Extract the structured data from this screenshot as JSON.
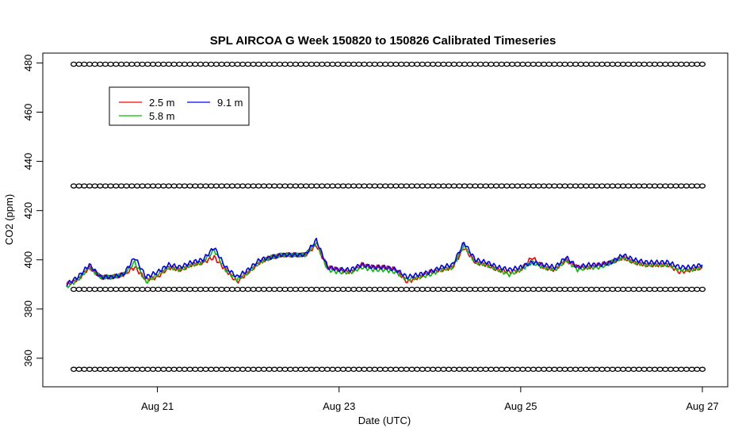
{
  "chart_data": {
    "type": "line",
    "title": "SPL AIRCOA G  Week 150820 to 150826  Calibrated Timeseries",
    "xlabel": "Date (UTC)",
    "ylabel": "CO2 (ppm)",
    "xlim": [
      "2015-08-20T00:00",
      "2015-08-27T00:00"
    ],
    "ylim": [
      350,
      484
    ],
    "x_ticks": [
      {
        "x": "2015-08-21T00:00",
        "label": "Aug 21"
      },
      {
        "x": "2015-08-23T00:00",
        "label": "Aug 23"
      },
      {
        "x": "2015-08-25T00:00",
        "label": "Aug 25"
      },
      {
        "x": "2015-08-27T00:00",
        "label": "Aug 27"
      }
    ],
    "y_ticks": [
      360,
      380,
      400,
      420,
      440,
      460,
      480
    ],
    "legend": {
      "position": "top-left",
      "entries": [
        "2.5 m",
        "5.8 m",
        "9.1 m"
      ]
    },
    "series": [
      {
        "name": "2.5 m",
        "color": "#ff0000",
        "points": [
          [
            "2015-08-20T00:00",
            390
          ],
          [
            "2015-08-20T03:00",
            392
          ],
          [
            "2015-08-20T06:00",
            397
          ],
          [
            "2015-08-20T09:00",
            393
          ],
          [
            "2015-08-20T12:00",
            393
          ],
          [
            "2015-08-20T15:00",
            394
          ],
          [
            "2015-08-20T18:00",
            397
          ],
          [
            "2015-08-20T21:00",
            392
          ],
          [
            "2015-08-21T00:00",
            393
          ],
          [
            "2015-08-21T03:00",
            397
          ],
          [
            "2015-08-21T06:00",
            396
          ],
          [
            "2015-08-21T09:00",
            398
          ],
          [
            "2015-08-21T12:00",
            399
          ],
          [
            "2015-08-21T15:00",
            401
          ],
          [
            "2015-08-21T18:00",
            396
          ],
          [
            "2015-08-21T21:00",
            391
          ],
          [
            "2015-08-22T00:00",
            395
          ],
          [
            "2015-08-22T03:00",
            399
          ],
          [
            "2015-08-22T06:00",
            401
          ],
          [
            "2015-08-22T09:00",
            402
          ],
          [
            "2015-08-22T12:00",
            402
          ],
          [
            "2015-08-22T15:00",
            402
          ],
          [
            "2015-08-22T18:00",
            406
          ],
          [
            "2015-08-22T21:00",
            397
          ],
          [
            "2015-08-23T00:00",
            396
          ],
          [
            "2015-08-23T03:00",
            395
          ],
          [
            "2015-08-23T06:00",
            398
          ],
          [
            "2015-08-23T09:00",
            397
          ],
          [
            "2015-08-23T12:00",
            397
          ],
          [
            "2015-08-23T15:00",
            396
          ],
          [
            "2015-08-23T18:00",
            391
          ],
          [
            "2015-08-23T21:00",
            393
          ],
          [
            "2015-08-24T00:00",
            395
          ],
          [
            "2015-08-24T03:00",
            396
          ],
          [
            "2015-08-24T06:00",
            397
          ],
          [
            "2015-08-24T09:00",
            405
          ],
          [
            "2015-08-24T12:00",
            399
          ],
          [
            "2015-08-24T15:00",
            398
          ],
          [
            "2015-08-24T18:00",
            396
          ],
          [
            "2015-08-24T21:00",
            395
          ],
          [
            "2015-08-25T00:00",
            396
          ],
          [
            "2015-08-25T03:00",
            401
          ],
          [
            "2015-08-25T06:00",
            397
          ],
          [
            "2015-08-25T09:00",
            396
          ],
          [
            "2015-08-25T12:00",
            400
          ],
          [
            "2015-08-25T15:00",
            397
          ],
          [
            "2015-08-25T18:00",
            397
          ],
          [
            "2015-08-25T21:00",
            398
          ],
          [
            "2015-08-26T00:00",
            399
          ],
          [
            "2015-08-26T03:00",
            401
          ],
          [
            "2015-08-26T06:00",
            399
          ],
          [
            "2015-08-26T09:00",
            398
          ],
          [
            "2015-08-26T12:00",
            398
          ],
          [
            "2015-08-26T15:00",
            398
          ],
          [
            "2015-08-26T18:00",
            395
          ],
          [
            "2015-08-26T21:00",
            396
          ],
          [
            "2015-08-27T00:00",
            397
          ]
        ]
      },
      {
        "name": "5.8 m",
        "color": "#00c000",
        "points": [
          [
            "2015-08-20T00:00",
            389
          ],
          [
            "2015-08-20T03:00",
            392
          ],
          [
            "2015-08-20T06:00",
            397
          ],
          [
            "2015-08-20T09:00",
            393
          ],
          [
            "2015-08-20T12:00",
            393
          ],
          [
            "2015-08-20T15:00",
            394
          ],
          [
            "2015-08-20T18:00",
            399
          ],
          [
            "2015-08-20T21:00",
            391
          ],
          [
            "2015-08-21T00:00",
            394
          ],
          [
            "2015-08-21T03:00",
            397
          ],
          [
            "2015-08-21T06:00",
            396
          ],
          [
            "2015-08-21T09:00",
            398
          ],
          [
            "2015-08-21T12:00",
            399
          ],
          [
            "2015-08-21T15:00",
            404
          ],
          [
            "2015-08-21T18:00",
            396
          ],
          [
            "2015-08-21T21:00",
            392
          ],
          [
            "2015-08-22T00:00",
            395
          ],
          [
            "2015-08-22T03:00",
            399
          ],
          [
            "2015-08-22T06:00",
            401
          ],
          [
            "2015-08-22T09:00",
            402
          ],
          [
            "2015-08-22T12:00",
            402
          ],
          [
            "2015-08-22T15:00",
            402
          ],
          [
            "2015-08-22T18:00",
            407
          ],
          [
            "2015-08-22T21:00",
            396
          ],
          [
            "2015-08-23T00:00",
            395
          ],
          [
            "2015-08-23T03:00",
            395
          ],
          [
            "2015-08-23T06:00",
            397
          ],
          [
            "2015-08-23T09:00",
            396
          ],
          [
            "2015-08-23T12:00",
            396
          ],
          [
            "2015-08-23T15:00",
            395
          ],
          [
            "2015-08-23T18:00",
            392
          ],
          [
            "2015-08-23T21:00",
            393
          ],
          [
            "2015-08-24T00:00",
            394
          ],
          [
            "2015-08-24T03:00",
            396
          ],
          [
            "2015-08-24T06:00",
            397
          ],
          [
            "2015-08-24T09:00",
            406
          ],
          [
            "2015-08-24T12:00",
            399
          ],
          [
            "2015-08-24T15:00",
            398
          ],
          [
            "2015-08-24T18:00",
            396
          ],
          [
            "2015-08-24T21:00",
            394
          ],
          [
            "2015-08-25T00:00",
            396
          ],
          [
            "2015-08-25T03:00",
            399
          ],
          [
            "2015-08-25T06:00",
            397
          ],
          [
            "2015-08-25T09:00",
            396
          ],
          [
            "2015-08-25T12:00",
            400
          ],
          [
            "2015-08-25T15:00",
            396
          ],
          [
            "2015-08-25T18:00",
            397
          ],
          [
            "2015-08-25T21:00",
            397
          ],
          [
            "2015-08-26T00:00",
            399
          ],
          [
            "2015-08-26T03:00",
            401
          ],
          [
            "2015-08-26T06:00",
            399
          ],
          [
            "2015-08-26T09:00",
            398
          ],
          [
            "2015-08-26T12:00",
            398
          ],
          [
            "2015-08-26T15:00",
            398
          ],
          [
            "2015-08-26T18:00",
            396
          ],
          [
            "2015-08-26T21:00",
            396
          ],
          [
            "2015-08-27T00:00",
            397
          ]
        ]
      },
      {
        "name": "9.1 m",
        "color": "#0000ff",
        "points": [
          [
            "2015-08-20T00:00",
            390
          ],
          [
            "2015-08-20T03:00",
            393
          ],
          [
            "2015-08-20T06:00",
            398
          ],
          [
            "2015-08-20T09:00",
            393
          ],
          [
            "2015-08-20T12:00",
            393
          ],
          [
            "2015-08-20T15:00",
            394
          ],
          [
            "2015-08-20T18:00",
            401
          ],
          [
            "2015-08-20T21:00",
            393
          ],
          [
            "2015-08-21T00:00",
            395
          ],
          [
            "2015-08-21T03:00",
            398
          ],
          [
            "2015-08-21T06:00",
            397
          ],
          [
            "2015-08-21T09:00",
            399
          ],
          [
            "2015-08-21T12:00",
            400
          ],
          [
            "2015-08-21T15:00",
            405
          ],
          [
            "2015-08-21T18:00",
            397
          ],
          [
            "2015-08-21T21:00",
            393
          ],
          [
            "2015-08-22T00:00",
            396
          ],
          [
            "2015-08-22T03:00",
            400
          ],
          [
            "2015-08-22T06:00",
            401
          ],
          [
            "2015-08-22T09:00",
            402
          ],
          [
            "2015-08-22T12:00",
            402
          ],
          [
            "2015-08-22T15:00",
            402
          ],
          [
            "2015-08-22T18:00",
            408
          ],
          [
            "2015-08-22T21:00",
            397
          ],
          [
            "2015-08-23T00:00",
            396
          ],
          [
            "2015-08-23T03:00",
            396
          ],
          [
            "2015-08-23T06:00",
            398
          ],
          [
            "2015-08-23T09:00",
            397
          ],
          [
            "2015-08-23T12:00",
            397
          ],
          [
            "2015-08-23T15:00",
            396
          ],
          [
            "2015-08-23T18:00",
            393
          ],
          [
            "2015-08-23T21:00",
            394
          ],
          [
            "2015-08-24T00:00",
            395
          ],
          [
            "2015-08-24T03:00",
            397
          ],
          [
            "2015-08-24T06:00",
            398
          ],
          [
            "2015-08-24T09:00",
            407
          ],
          [
            "2015-08-24T12:00",
            400
          ],
          [
            "2015-08-24T15:00",
            399
          ],
          [
            "2015-08-24T18:00",
            397
          ],
          [
            "2015-08-24T21:00",
            396
          ],
          [
            "2015-08-25T00:00",
            397
          ],
          [
            "2015-08-25T03:00",
            399
          ],
          [
            "2015-08-25T06:00",
            398
          ],
          [
            "2015-08-25T09:00",
            397
          ],
          [
            "2015-08-25T12:00",
            401
          ],
          [
            "2015-08-25T15:00",
            397
          ],
          [
            "2015-08-25T18:00",
            398
          ],
          [
            "2015-08-25T21:00",
            398
          ],
          [
            "2015-08-26T00:00",
            399
          ],
          [
            "2015-08-26T03:00",
            402
          ],
          [
            "2015-08-26T06:00",
            400
          ],
          [
            "2015-08-26T09:00",
            399
          ],
          [
            "2015-08-26T12:00",
            399
          ],
          [
            "2015-08-26T15:00",
            399
          ],
          [
            "2015-08-26T18:00",
            397
          ],
          [
            "2015-08-26T21:00",
            397
          ],
          [
            "2015-08-27T00:00",
            398
          ]
        ]
      },
      {
        "name": "",
        "color": "#000000",
        "marker": "circle",
        "y_levels": [
          479.5,
          430,
          388,
          355.5
        ],
        "points_per_day": 17
      }
    ]
  }
}
